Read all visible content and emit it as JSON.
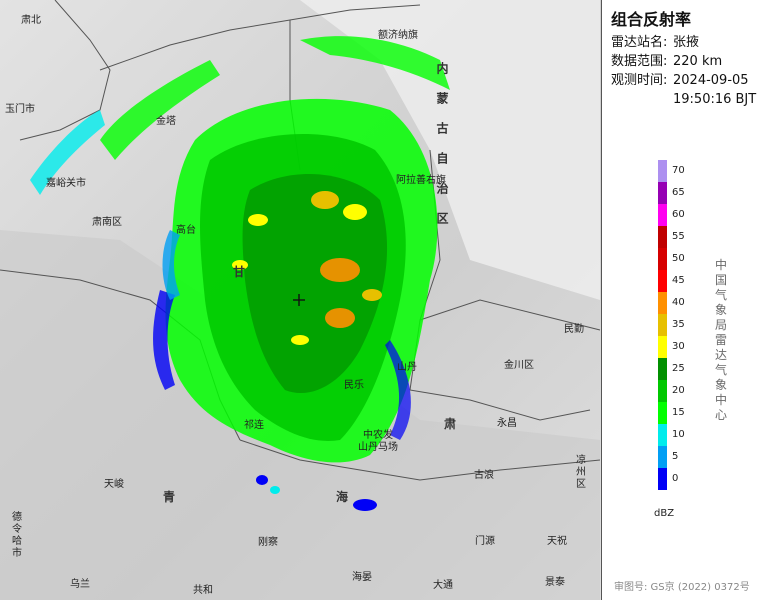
{
  "map": {
    "labels": [
      {
        "id": "suzhou",
        "text": "肃北"
      },
      {
        "id": "ejina",
        "text": "额济纳旗"
      },
      {
        "id": "yumen",
        "text": "玉门市"
      },
      {
        "id": "jinta",
        "text": "金塔"
      },
      {
        "id": "jiayuguan",
        "text": "嘉峪关市"
      },
      {
        "id": "alashan",
        "text": "阿拉善右旗"
      },
      {
        "id": "sunan",
        "text": "肃南区"
      },
      {
        "id": "gaotai",
        "text": "高台"
      },
      {
        "id": "gan",
        "text": "甘"
      },
      {
        "id": "minle",
        "text": "民乐"
      },
      {
        "id": "shandan",
        "text": "山丹"
      },
      {
        "id": "yongchang",
        "text": "永昌"
      },
      {
        "id": "jinchuan",
        "text": "金川区"
      },
      {
        "id": "minqin",
        "text": "民勤"
      },
      {
        "id": "su",
        "text": "肃"
      },
      {
        "id": "shandanmachang",
        "text": "中农发\n山丹马场"
      },
      {
        "id": "qilian",
        "text": "祁连"
      },
      {
        "id": "menyuan",
        "text": "门源"
      },
      {
        "id": "tianjun",
        "text": "天峻"
      },
      {
        "id": "qing",
        "text": "青"
      },
      {
        "id": "hai",
        "text": "海"
      },
      {
        "id": "gangcha",
        "text": "刚察"
      },
      {
        "id": "delingha",
        "text": "德令哈市"
      },
      {
        "id": "ulan",
        "text": "乌兰"
      },
      {
        "id": "gonghe",
        "text": "共和"
      },
      {
        "id": "haiyan",
        "text": "海晏"
      },
      {
        "id": "datong",
        "text": "大通"
      },
      {
        "id": "tianzhu",
        "text": "天祝"
      },
      {
        "id": "liangzhou",
        "text": "凉州区"
      },
      {
        "id": "gulang",
        "text": "古浪"
      },
      {
        "id": "jingtai",
        "text": "景泰"
      },
      {
        "id": "neimenggu",
        "text": "内蒙古自治区"
      }
    ]
  },
  "panel": {
    "title": "组合反射率",
    "station_label": "雷达站名:",
    "station_value": "张掖",
    "range_label": "数据范围:",
    "range_value": "220 km",
    "time_label": "观测时间:",
    "time_date": "2024-09-05",
    "time_clock": "19:50:16 BJT",
    "agency": "中国气象局雷达气象中心",
    "unit": "dBZ",
    "approval": "审图号: GS京 (2022) 0372号"
  },
  "legend": {
    "ticks": [
      "0",
      "5",
      "10",
      "15",
      "20",
      "25",
      "30",
      "35",
      "40",
      "45",
      "50",
      "55",
      "60",
      "65",
      "70"
    ],
    "colors": [
      "#0000f6",
      "#019ff4",
      "#00ecec",
      "#01ff00",
      "#00c800",
      "#019000",
      "#ffff00",
      "#e7c000",
      "#ff9000",
      "#ff0000",
      "#d60000",
      "#c00000",
      "#ff00f0",
      "#9600b4",
      "#ad90f0"
    ]
  }
}
